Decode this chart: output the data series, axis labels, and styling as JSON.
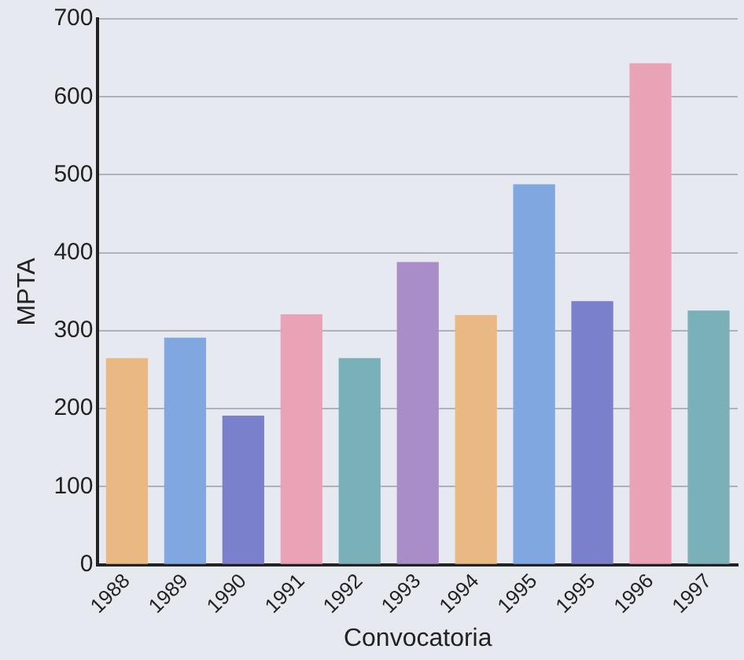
{
  "chart_data": {
    "type": "bar",
    "xlabel": "Convocatoria",
    "ylabel": "MPTA",
    "categories": [
      "1988",
      "1989",
      "1990",
      "1991",
      "1992",
      "1993",
      "1994",
      "1995",
      "1995",
      "1996",
      "1997"
    ],
    "values": [
      265,
      291,
      191,
      321,
      265,
      388,
      320,
      488,
      338,
      643,
      326
    ],
    "colors": [
      "#e9b883",
      "#80a7e0",
      "#7b80cc",
      "#e9a2b6",
      "#7ab1b9",
      "#a98dc9",
      "#e9b883",
      "#80a7e0",
      "#7b80cc",
      "#e9a2b6",
      "#7ab1b9"
    ],
    "ylim": [
      0,
      700
    ],
    "yticks": [
      0,
      100,
      200,
      300,
      400,
      500,
      600,
      700
    ],
    "grid": "y"
  }
}
